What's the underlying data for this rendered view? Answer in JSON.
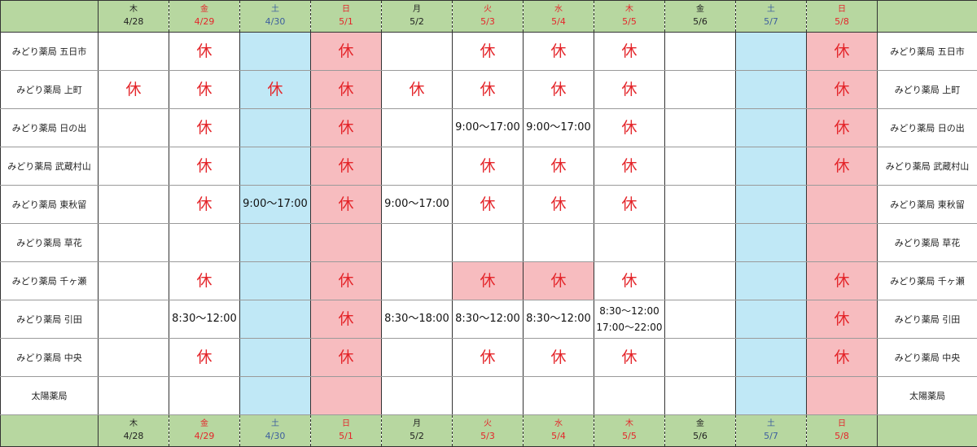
{
  "days": [
    {
      "weekday": "木",
      "date": "4/28",
      "color": "black",
      "type": "weekday"
    },
    {
      "weekday": "金",
      "date": "4/29",
      "color": "red",
      "type": "weekday"
    },
    {
      "weekday": "土",
      "date": "4/30",
      "color": "blue",
      "type": "sat"
    },
    {
      "weekday": "日",
      "date": "5/1",
      "color": "red",
      "type": "sun"
    },
    {
      "weekday": "月",
      "date": "5/2",
      "color": "black",
      "type": "weekday"
    },
    {
      "weekday": "火",
      "date": "5/3",
      "color": "red",
      "type": "weekday"
    },
    {
      "weekday": "水",
      "date": "5/4",
      "color": "red",
      "type": "weekday"
    },
    {
      "weekday": "木",
      "date": "5/5",
      "color": "red",
      "type": "weekday"
    },
    {
      "weekday": "金",
      "date": "5/6",
      "color": "black",
      "type": "weekday"
    },
    {
      "weekday": "土",
      "date": "5/7",
      "color": "blue",
      "type": "sat"
    },
    {
      "weekday": "日",
      "date": "5/8",
      "color": "red",
      "type": "sun"
    }
  ],
  "colors": {
    "header_bg": "#b7d7a0",
    "saturday_bg": "#c0e8f6",
    "sunday_bg": "#f7bcbf",
    "closed_text": "#e4262b",
    "red_text": "#e4262b",
    "blue_text": "#3d5f9e"
  },
  "rows": [
    {
      "name": "みどり薬局 五日市",
      "cells": [
        "",
        "休",
        "",
        "休",
        "",
        "休",
        "休",
        "休",
        "",
        "",
        "休"
      ],
      "highlight": []
    },
    {
      "name": "みどり薬局 上町",
      "cells": [
        "休",
        "休",
        "休",
        "休",
        "休",
        "休",
        "休",
        "休",
        "",
        "",
        "休"
      ],
      "highlight": []
    },
    {
      "name": "みどり薬局 日の出",
      "cells": [
        "",
        "休",
        "",
        "休",
        "",
        "9:00〜17:00",
        "9:00〜17:00",
        "休",
        "",
        "",
        "休"
      ],
      "highlight": []
    },
    {
      "name": "みどり薬局 武蔵村山",
      "cells": [
        "",
        "休",
        "",
        "休",
        "",
        "休",
        "休",
        "休",
        "",
        "",
        "休"
      ],
      "highlight": []
    },
    {
      "name": "みどり薬局 東秋留",
      "cells": [
        "",
        "休",
        "9:00〜17:00",
        "休",
        "9:00〜17:00",
        "休",
        "休",
        "休",
        "",
        "",
        ""
      ],
      "highlight": []
    },
    {
      "name": "みどり薬局 草花",
      "cells": [
        "",
        "",
        "",
        "",
        "",
        "",
        "",
        "",
        "",
        "",
        ""
      ],
      "highlight": []
    },
    {
      "name": "みどり薬局 千ヶ瀬",
      "cells": [
        "",
        "休",
        "",
        "休",
        "",
        "休",
        "休",
        "休",
        "",
        "",
        "休"
      ],
      "highlight": [
        5,
        6
      ]
    },
    {
      "name": "みどり薬局 引田",
      "cells": [
        "",
        "8:30〜12:00",
        "",
        "休",
        "8:30〜18:00",
        "8:30〜12:00",
        "8:30〜12:00",
        "8:30〜12:00\n17:00〜22:00",
        "",
        "",
        "休"
      ],
      "highlight": []
    },
    {
      "name": "みどり薬局 中央",
      "cells": [
        "",
        "休",
        "",
        "休",
        "",
        "休",
        "休",
        "休",
        "",
        "",
        "休"
      ],
      "highlight": []
    },
    {
      "name": "太陽薬局",
      "cells": [
        "",
        "",
        "",
        "",
        "",
        "",
        "",
        "",
        "",
        "",
        ""
      ],
      "highlight": []
    }
  ]
}
